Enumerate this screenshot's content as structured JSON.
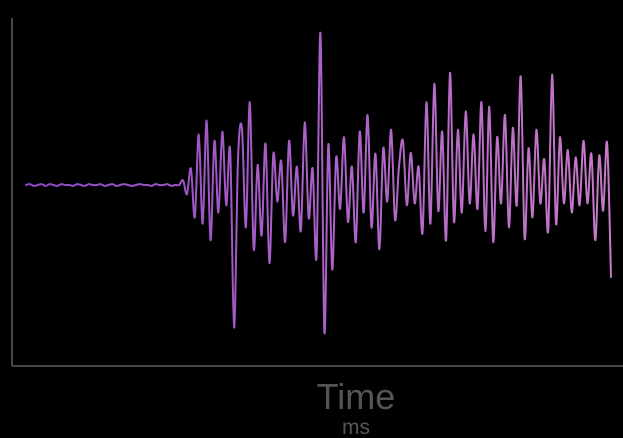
{
  "chart_data": {
    "type": "line",
    "title": "",
    "xlabel": "Time",
    "xunit": "ms",
    "ylabel": "",
    "grid": false,
    "legend": "none",
    "colors": {
      "start": "#8e48c6",
      "end": "#c77ac8",
      "axis": "#5a5a5a",
      "label": "#555555"
    },
    "series": [
      {
        "values": [
          0,
          0.01,
          -0.01,
          0,
          0.01,
          -0.01,
          0.01,
          0,
          -0.01,
          0.01,
          0,
          0,
          -0.01,
          0.01,
          0,
          -0.01,
          0.01,
          0,
          0,
          0.01,
          -0.01,
          0,
          0.01,
          -0.01,
          0,
          0.01,
          0,
          -0.01,
          0,
          0.01,
          0,
          0,
          -0.01,
          0.01,
          0,
          0,
          0.01,
          -0.01,
          0,
          0,
          0.05,
          -0.1,
          0.18,
          -0.35,
          0.55,
          -0.42,
          0.7,
          -0.6,
          0.48,
          -0.3,
          0.58,
          -0.22,
          0.38,
          -1.55,
          0.28,
          0.62,
          -0.46,
          0.9,
          -0.7,
          0.22,
          -0.55,
          0.45,
          -0.85,
          0.34,
          -0.18,
          0.26,
          -0.62,
          0.48,
          -0.33,
          0.2,
          -0.5,
          0.68,
          -0.36,
          0.18,
          -0.78,
          1.65,
          -1.6,
          0.44,
          -0.92,
          0.3,
          -0.26,
          0.52,
          -0.4,
          0.2,
          -0.62,
          0.58,
          -0.3,
          0.76,
          -0.46,
          0.34,
          -0.7,
          0.4,
          -0.18,
          0.6,
          -0.38,
          0.2,
          0.48,
          -0.22,
          0.35,
          -0.2,
          0.2,
          -0.52,
          0.9,
          -0.42,
          1.1,
          -0.28,
          0.58,
          -0.6,
          1.22,
          -0.4,
          0.6,
          -0.3,
          0.8,
          -0.2,
          0.55,
          -0.26,
          0.9,
          -0.5,
          0.85,
          -0.62,
          0.52,
          -0.2,
          0.76,
          -0.46,
          0.62,
          -0.22,
          1.18,
          -0.58,
          0.4,
          -0.35,
          0.6,
          -0.2,
          0.28,
          -0.5,
          1.2,
          -0.42,
          0.52,
          -0.2,
          0.38,
          -0.3,
          0.3,
          -0.22,
          0.48,
          -0.2,
          0.34,
          -0.6,
          0.32,
          -0.28,
          0.46,
          -1.0
        ]
      }
    ]
  }
}
